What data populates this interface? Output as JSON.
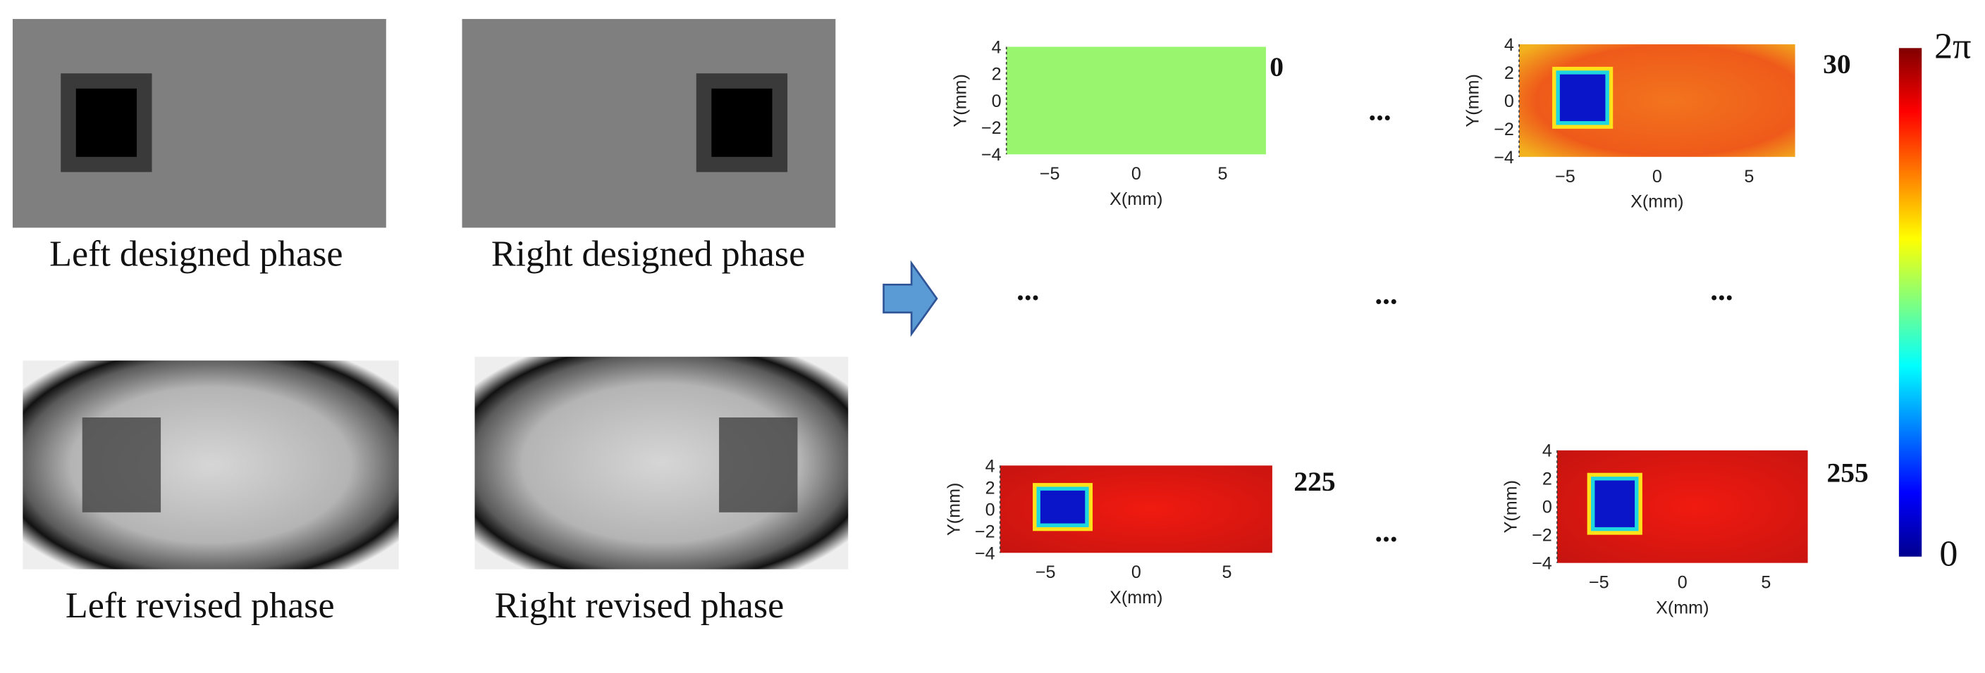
{
  "phase_images": [
    {
      "caption": "Left designed phase"
    },
    {
      "caption": "Right designed phase"
    },
    {
      "caption": "Left revised phase"
    },
    {
      "caption": "Right revised phase"
    }
  ],
  "plots": [
    {
      "label": "0"
    },
    {
      "label": "30"
    },
    {
      "label": "225"
    },
    {
      "label": "255"
    }
  ],
  "axes": {
    "x_label": "X(mm)",
    "y_label": "Y(mm)",
    "xticks": [
      "−5",
      "0",
      "5"
    ],
    "yticks": [
      "4",
      "2",
      "0",
      "−2",
      "−4"
    ]
  },
  "ellipsis": "...",
  "colorbar": {
    "max_label": "2π",
    "min_label": "0"
  }
}
